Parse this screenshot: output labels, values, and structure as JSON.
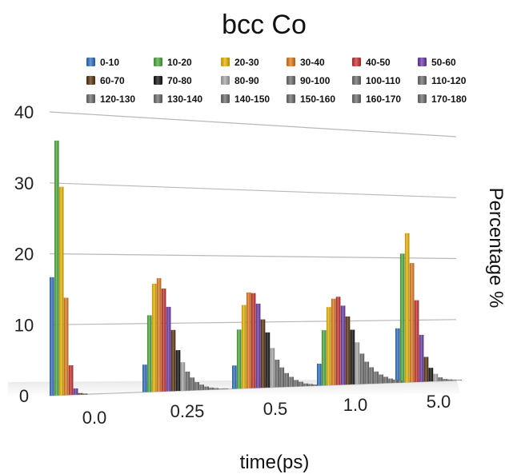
{
  "chart_data": {
    "type": "bar",
    "title": "bcc Co",
    "xlabel": "time(ps)",
    "ylabel": "Percentage %",
    "ylim": [
      0,
      40
    ],
    "yticks": [
      "0",
      "10",
      "20",
      "30",
      "40"
    ],
    "categories": [
      "0.0",
      "0.25",
      "0.5",
      "1.0",
      "5.0"
    ],
    "grid": true,
    "legend_position": "top",
    "series": [
      {
        "name": "0-10",
        "color": "#2f6fc0",
        "values": [
          16.7,
          4.0,
          3.5,
          3.4,
          8.7
        ]
      },
      {
        "name": "10-20",
        "color": "#4daa3c",
        "values": [
          36.0,
          11.2,
          8.9,
          8.6,
          20.7
        ]
      },
      {
        "name": "20-30",
        "color": "#e8b400",
        "values": [
          29.5,
          15.8,
          12.6,
          12.2,
          24.0
        ]
      },
      {
        "name": "30-40",
        "color": "#e07a1e",
        "values": [
          13.8,
          16.6,
          14.5,
          13.5,
          19.2
        ]
      },
      {
        "name": "40-50",
        "color": "#c63030",
        "values": [
          4.2,
          15.1,
          14.4,
          13.8,
          13.2
        ]
      },
      {
        "name": "50-60",
        "color": "#6a3aa8",
        "values": [
          0.9,
          12.4,
          12.8,
          12.4,
          7.6
        ]
      },
      {
        "name": "60-70",
        "color": "#5a3210",
        "values": [
          0.2,
          9.0,
          10.4,
          10.7,
          4.0
        ]
      },
      {
        "name": "70-80",
        "color": "#111111",
        "values": [
          0.1,
          6.0,
          8.4,
          8.6,
          2.2
        ]
      },
      {
        "name": "80-90",
        "color": "#aaaaaa",
        "values": [
          0.0,
          4.2,
          6.0,
          6.6,
          1.2
        ]
      },
      {
        "name": "90-100",
        "color": "#6d6d6d",
        "values": [
          0.0,
          2.8,
          4.2,
          4.8,
          0.6
        ]
      },
      {
        "name": "100-110",
        "color": "#6d6d6d",
        "values": [
          0.0,
          1.9,
          3.0,
          3.5,
          0.3
        ]
      },
      {
        "name": "110-120",
        "color": "#6d6d6d",
        "values": [
          0.0,
          1.2,
          2.1,
          2.6,
          0.2
        ]
      },
      {
        "name": "120-130",
        "color": "#6d6d6d",
        "values": [
          0.0,
          0.8,
          1.5,
          1.9,
          0.1
        ]
      },
      {
        "name": "130-140",
        "color": "#6d6d6d",
        "values": [
          0.0,
          0.5,
          1.0,
          1.4,
          0.1
        ]
      },
      {
        "name": "140-150",
        "color": "#6d6d6d",
        "values": [
          0.0,
          0.3,
          0.7,
          1.0,
          0.0
        ]
      },
      {
        "name": "150-160",
        "color": "#6d6d6d",
        "values": [
          0.0,
          0.2,
          0.4,
          0.7,
          0.0
        ]
      },
      {
        "name": "160-170",
        "color": "#6d6d6d",
        "values": [
          0.0,
          0.1,
          0.3,
          0.5,
          0.0
        ]
      },
      {
        "name": "170-180",
        "color": "#6d6d6d",
        "values": [
          0.0,
          0.1,
          0.2,
          0.3,
          0.0
        ]
      }
    ]
  }
}
